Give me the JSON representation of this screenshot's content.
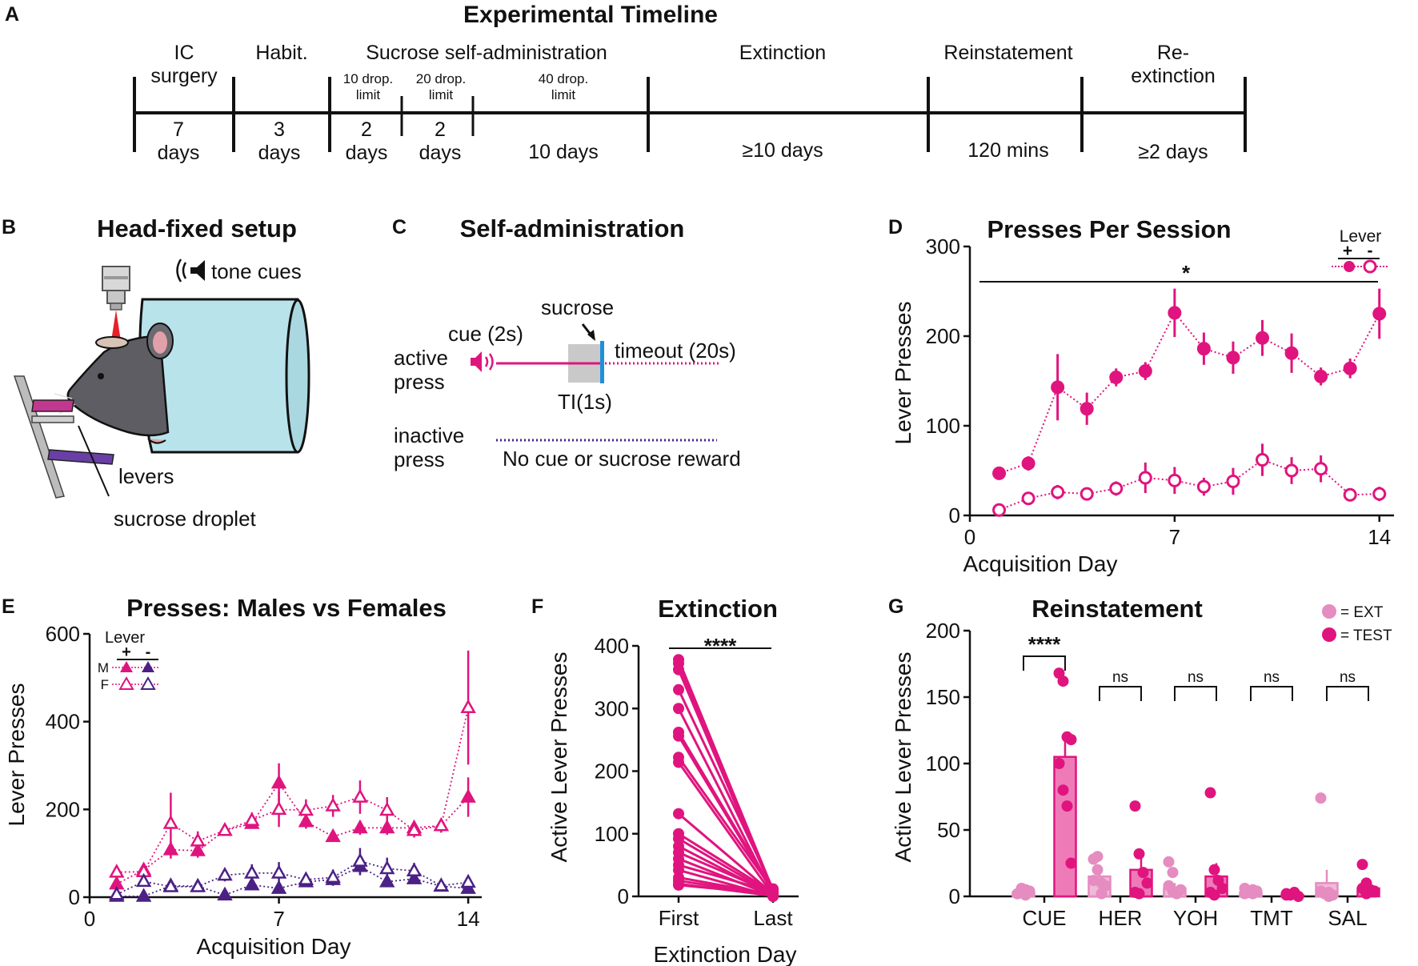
{
  "colors": {
    "magenta": "#e0147e",
    "pink": "#e58cc0",
    "purple": "#4b2185",
    "purple_light": "#8a6bc2",
    "grey": "#c9c9c9",
    "blue": "#1e90d8",
    "tube": "#b9e3ea",
    "mouse": "#5d5d63"
  },
  "panelA": {
    "letter": "A",
    "title": "Experimental Timeline",
    "stages": [
      {
        "name_lines": [
          "IC",
          "surgery"
        ],
        "dur_lines": [
          "7",
          "days"
        ]
      },
      {
        "name_lines": [
          "Habit."
        ],
        "dur_lines": [
          "3",
          "days"
        ]
      },
      {
        "name_lines": [],
        "dur_lines": [
          "2",
          "days"
        ]
      },
      {
        "name_lines": [],
        "dur_lines": [
          "2",
          "days"
        ]
      },
      {
        "name_lines": [],
        "dur_lines": [
          "10 days"
        ]
      },
      {
        "name_lines": [
          "Extinction"
        ],
        "dur_lines": [
          "≥10 days"
        ]
      },
      {
        "name_lines": [
          "Reinstatement"
        ],
        "dur_lines": [
          "120 mins"
        ]
      },
      {
        "name_lines": [
          "Re-",
          "extinction"
        ],
        "dur_lines": [
          "≥2 days"
        ]
      }
    ],
    "sucrose_label": "Sucrose self-administration",
    "sub_limits": [
      {
        "lines": [
          "10 drop.",
          "limit"
        ]
      },
      {
        "lines": [
          "20 drop.",
          "limit"
        ]
      },
      {
        "lines": [
          "40 drop.",
          "limit"
        ]
      }
    ]
  },
  "panelB": {
    "letter": "B",
    "title": "Head-fixed setup",
    "tone_label": "tone cues",
    "levers_label": "levers",
    "droplet_label": "sucrose droplet"
  },
  "panelC": {
    "letter": "C",
    "title": "Self-administration",
    "cue_label": "cue (2s)",
    "sucrose_label": "sucrose",
    "active_lines": [
      "active",
      "press"
    ],
    "timeout_label": "timeout (20s)",
    "ti_label": "TI(1s)",
    "inactive_lines": [
      "inactive",
      "press"
    ],
    "no_reward_label": "No cue or sucrose reward"
  },
  "chart_data": [
    {
      "panel": "D",
      "type": "line",
      "title": "Presses Per Session",
      "xlabel": "Acquisition Day",
      "ylabel": "Lever Presses",
      "xlim": [
        0,
        14.5
      ],
      "ylim": [
        0,
        300
      ],
      "xticks": [
        0,
        7,
        14
      ],
      "yticks": [
        0,
        100,
        200,
        300
      ],
      "legend_title": "Lever",
      "legend_symbols": [
        "+",
        "-"
      ],
      "significance": "*",
      "x": [
        1,
        2,
        3,
        4,
        5,
        6,
        7,
        8,
        9,
        10,
        11,
        12,
        13,
        14
      ],
      "series": [
        {
          "name": "+",
          "marker": "filled-circle",
          "values": [
            47,
            58,
            143,
            119,
            154,
            161,
            226,
            186,
            176,
            198,
            181,
            155,
            164,
            225
          ],
          "err": [
            7,
            8,
            37,
            18,
            10,
            10,
            27,
            18,
            18,
            20,
            22,
            10,
            11,
            28
          ]
        },
        {
          "name": "-",
          "marker": "open-circle",
          "values": [
            6,
            19,
            26,
            24,
            30,
            42,
            39,
            32,
            38,
            62,
            50,
            52,
            23,
            24
          ],
          "err": [
            4,
            7,
            8,
            4,
            8,
            17,
            15,
            10,
            15,
            18,
            15,
            15,
            7,
            8
          ]
        }
      ]
    },
    {
      "panel": "E",
      "type": "line",
      "title": "Presses: Males vs Females",
      "xlabel": "Acquisition Day",
      "ylabel": "Lever Presses",
      "xlim": [
        0,
        14.5
      ],
      "ylim": [
        0,
        600
      ],
      "xticks": [
        0,
        7,
        14
      ],
      "yticks": [
        0,
        200,
        400,
        600
      ],
      "legend_title": "Lever",
      "legend_symbols": [
        "+",
        "-"
      ],
      "legend_rows": [
        "M",
        "F"
      ],
      "x": [
        1,
        2,
        3,
        4,
        5,
        6,
        7,
        8,
        9,
        10,
        11,
        12,
        13,
        14
      ],
      "series": [
        {
          "name": "M +",
          "marker": "filled-triangle",
          "color": "magenta",
          "values": [
            30,
            62,
            108,
            106,
            152,
            168,
            260,
            172,
            138,
            158,
            158,
            158,
            163,
            228
          ],
          "err": [
            10,
            12,
            20,
            16,
            10,
            12,
            45,
            16,
            12,
            16,
            16,
            12,
            12,
            45
          ]
        },
        {
          "name": "F +",
          "marker": "open-triangle",
          "color": "magenta",
          "values": [
            57,
            58,
            168,
            128,
            152,
            175,
            200,
            198,
            208,
            228,
            198,
            152,
            163,
            432
          ],
          "err": [
            10,
            16,
            70,
            22,
            12,
            18,
            40,
            25,
            25,
            38,
            30,
            16,
            16,
            130
          ]
        },
        {
          "name": "M -",
          "marker": "filled-triangle",
          "color": "purple",
          "values": [
            2,
            2,
            26,
            25,
            5,
            28,
            20,
            35,
            40,
            70,
            35,
            42,
            25,
            20
          ],
          "err": [
            2,
            2,
            8,
            6,
            4,
            10,
            10,
            12,
            14,
            20,
            10,
            10,
            8,
            8
          ]
        },
        {
          "name": "F -",
          "marker": "open-triangle",
          "color": "purple",
          "values": [
            6,
            36,
            24,
            24,
            50,
            55,
            55,
            40,
            45,
            82,
            65,
            60,
            26,
            34
          ],
          "err": [
            4,
            10,
            8,
            6,
            14,
            20,
            25,
            16,
            18,
            30,
            25,
            18,
            10,
            10
          ]
        }
      ]
    },
    {
      "panel": "F",
      "type": "line",
      "title": "Extinction",
      "xlabel": "Extinction Day",
      "ylabel": "Active Lever Presses",
      "categories": [
        "First",
        "Last"
      ],
      "ylim": [
        0,
        400
      ],
      "yticks": [
        0,
        100,
        200,
        300,
        400
      ],
      "significance": "****",
      "pairs_first": [
        378,
        372,
        362,
        330,
        300,
        262,
        256,
        222,
        214,
        132,
        100,
        92,
        80,
        70,
        60,
        50,
        42,
        30,
        25,
        20,
        18
      ],
      "pairs_last": [
        10,
        8,
        6,
        12,
        4,
        8,
        6,
        10,
        2,
        4,
        6,
        3,
        2,
        5,
        1,
        7,
        0,
        3,
        2,
        1,
        4
      ]
    },
    {
      "panel": "G",
      "type": "bar",
      "title": "Reinstatement",
      "ylabel": "Active Lever Presses",
      "categories": [
        "CUE",
        "HER",
        "YOH",
        "TMT",
        "SAL"
      ],
      "ylim": [
        0,
        200
      ],
      "yticks": [
        0,
        50,
        100,
        150,
        200
      ],
      "legend": [
        "= EXT",
        "= TEST"
      ],
      "significance": [
        "****",
        "ns",
        "ns",
        "ns",
        "ns"
      ],
      "series": [
        {
          "name": "EXT",
          "values": [
            3,
            15,
            6,
            3,
            10
          ],
          "err": [
            1,
            7,
            4,
            1,
            10
          ],
          "points": [
            [
              2,
              3,
              5,
              4,
              2,
              6,
              1
            ],
            [
              28,
              30,
              10,
              8,
              12,
              20,
              2
            ],
            [
              26,
              18,
              2,
              5,
              8,
              4,
              3
            ],
            [
              6,
              3,
              2,
              4,
              2,
              3,
              5
            ],
            [
              74,
              2,
              3,
              1,
              4,
              2,
              0
            ]
          ]
        },
        {
          "name": "TEST",
          "values": [
            105,
            20,
            15,
            1,
            6
          ],
          "err": [
            16,
            9,
            10,
            1,
            3
          ],
          "points": [
            [
              168,
              162,
              120,
              118,
              100,
              80,
              68,
              25
            ],
            [
              68,
              32,
              18,
              10,
              3,
              2
            ],
            [
              78,
              20,
              12,
              6,
              3,
              1
            ],
            [
              2,
              1,
              3,
              0,
              1
            ],
            [
              24,
              10,
              5,
              4,
              6,
              2
            ]
          ]
        }
      ]
    }
  ]
}
